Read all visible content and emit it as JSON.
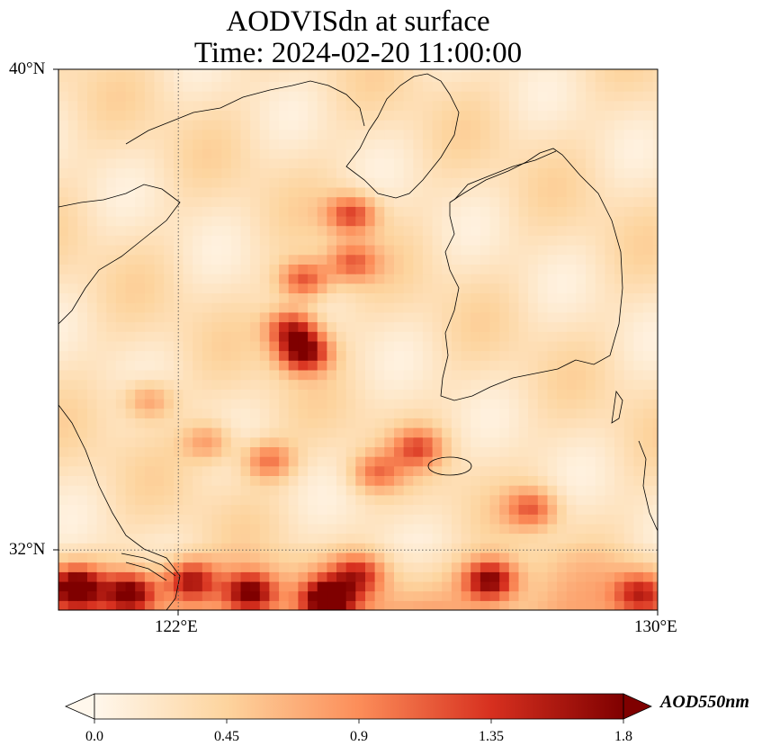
{
  "title": {
    "line1": "AODVISdn at surface",
    "line2": "Time: 2024-02-20 11:00:00"
  },
  "map": {
    "lat_range": [
      31,
      40
    ],
    "lon_range": [
      120,
      130
    ],
    "lat_ticks": [
      {
        "value": 40,
        "label": "40°N"
      },
      {
        "value": 32,
        "label": "32°N"
      }
    ],
    "lon_ticks": [
      {
        "value": 122,
        "label": "122°E"
      },
      {
        "value": 130,
        "label": "130°E"
      }
    ],
    "gridlines": {
      "lon": 122,
      "lat": 32,
      "style": "dotted"
    },
    "colormap": "OrRd",
    "hotspots": [
      {
        "lon": 124.1,
        "lat": 35.3,
        "aod": 1.8
      },
      {
        "lon": 123.9,
        "lat": 35.7,
        "aod": 1.5
      },
      {
        "lon": 124.1,
        "lat": 36.5,
        "aod": 1.3
      },
      {
        "lon": 124.9,
        "lat": 36.8,
        "aod": 1.1
      },
      {
        "lon": 124.9,
        "lat": 37.6,
        "aod": 1.3
      },
      {
        "lon": 123.5,
        "lat": 33.5,
        "aod": 1.1
      },
      {
        "lon": 125.3,
        "lat": 33.3,
        "aod": 1.0
      },
      {
        "lon": 126.0,
        "lat": 33.7,
        "aod": 1.1
      },
      {
        "lon": 120.3,
        "lat": 31.4,
        "aod": 1.8
      },
      {
        "lon": 121.2,
        "lat": 31.3,
        "aod": 1.7
      },
      {
        "lon": 122.2,
        "lat": 31.5,
        "aod": 1.5
      },
      {
        "lon": 123.2,
        "lat": 31.3,
        "aod": 1.7
      },
      {
        "lon": 124.5,
        "lat": 31.2,
        "aod": 1.8
      },
      {
        "lon": 125.0,
        "lat": 31.6,
        "aod": 1.2
      },
      {
        "lon": 127.2,
        "lat": 31.5,
        "aod": 1.7
      },
      {
        "lon": 127.9,
        "lat": 32.7,
        "aod": 1.1
      },
      {
        "lon": 129.7,
        "lat": 31.3,
        "aod": 1.2
      },
      {
        "lon": 121.5,
        "lat": 34.5,
        "aod": 0.9
      },
      {
        "lon": 122.5,
        "lat": 33.8,
        "aod": 0.9
      }
    ]
  },
  "colorbar": {
    "label": "AOD550nm",
    "min": 0.0,
    "max": 1.8,
    "extend": "both",
    "ticks": [
      "0.0",
      "0.45",
      "0.9",
      "1.35",
      "1.8"
    ]
  }
}
